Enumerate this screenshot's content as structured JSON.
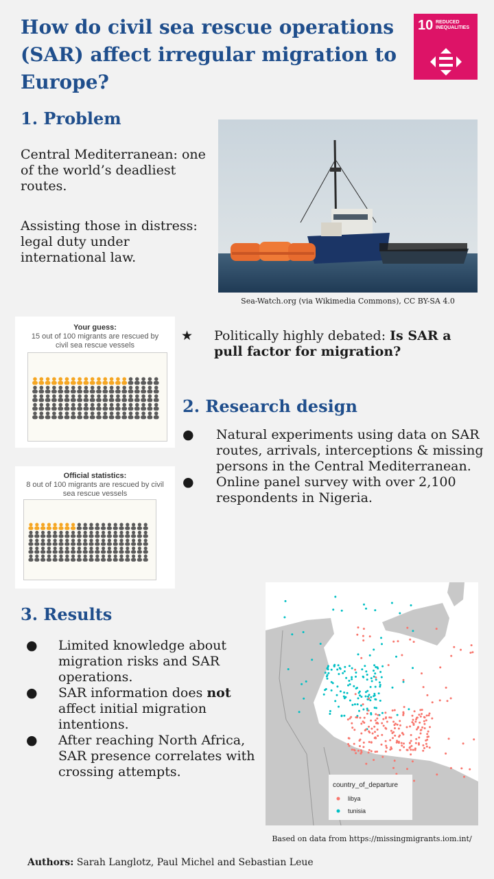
{
  "title": "How do civil sea rescue operations (SAR) affect irregular migration to Europe?",
  "sdg": {
    "number": "10",
    "label": "REDUCED INEQUALITIES",
    "color": "#dd1367"
  },
  "problem": {
    "heading": "1. Problem",
    "p1": "Central Mediterranean: one of the world’s deadliest routes.",
    "p2": "Assisting those in distress: legal duty under international law.",
    "photo_caption": "Sea-Watch.org (via Wikimedia Commons), CC BY-SA 4.0",
    "debate_star": "★",
    "debate_prefix": "Politically highly debated: ",
    "debate_bold": "Is SAR a pull factor for migration?"
  },
  "guess_card": {
    "title": "Your guess:",
    "text": "15 out of 100 migrants are rescued by civil sea rescue vessels",
    "highlighted": 15
  },
  "official_card": {
    "title": "Official statistics:",
    "text": "8 out of 100 migrants are rescued by civil sea rescue vessels",
    "highlighted": 8
  },
  "design": {
    "heading": "2. Research design",
    "items": [
      "Natural experiments using data on SAR routes, arrivals, interceptions & missing persons in the Central Mediterranean.",
      "Online panel survey with over 2,100 respondents in Nigeria."
    ]
  },
  "results": {
    "heading": "3. Results",
    "item1": "Limited knowledge about migration risks and SAR operations.",
    "item2_prefix": "SAR information does ",
    "item2_bold": "not",
    "item2_suffix": " affect initial migration intentions.",
    "item3": "After reaching North Africa, SAR presence correlates with crossing attempts."
  },
  "map": {
    "legend_title": "country_of_departure",
    "legend_items": [
      {
        "label": "libya",
        "color": "#f8766d"
      },
      {
        "label": "tunisia",
        "color": "#00bfc4"
      }
    ],
    "caption": "Based on data from https://missingmigrants.iom.int/"
  },
  "authors": {
    "label": "Authors:",
    "names": "Sarah Langlotz, Paul Michel and Sebastian Leue"
  },
  "colors": {
    "heading": "#1f4e8c",
    "icon_highlight": "#f5a623",
    "icon_default": "#5a5a5a"
  }
}
